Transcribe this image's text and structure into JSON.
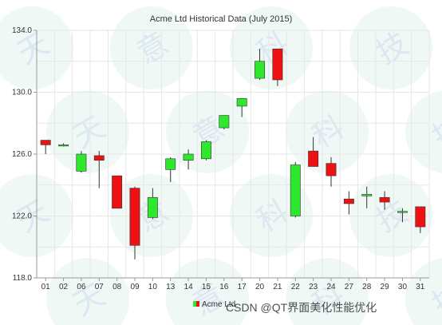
{
  "chart_data": {
    "type": "candlestick",
    "title": "Acme Ltd Historical Data (July 2015)",
    "ylim": [
      118.0,
      134.0
    ],
    "yticks": [
      "118.0",
      "122.0",
      "126.0",
      "130.0",
      "134.0"
    ],
    "legend": {
      "label": "Acme Ltd",
      "position": "bottom-center"
    },
    "grid": true,
    "colors": {
      "increasing": "#2ee82e",
      "decreasing": "#ee1111"
    },
    "series": [
      {
        "name": "Acme Ltd",
        "points": [
          {
            "x": "01",
            "open": 126.9,
            "high": 126.9,
            "low": 126.0,
            "close": 126.6
          },
          {
            "x": "02",
            "open": 126.6,
            "high": 126.7,
            "low": 126.5,
            "close": 126.6
          },
          {
            "x": "06",
            "open": 124.9,
            "high": 126.2,
            "low": 124.8,
            "close": 126.0
          },
          {
            "x": "07",
            "open": 125.9,
            "high": 126.2,
            "low": 123.8,
            "close": 125.6
          },
          {
            "x": "08",
            "open": 124.6,
            "high": 124.6,
            "low": 122.5,
            "close": 122.5
          },
          {
            "x": "09",
            "open": 123.8,
            "high": 123.9,
            "low": 119.2,
            "close": 120.1
          },
          {
            "x": "10",
            "open": 121.9,
            "high": 123.8,
            "low": 121.8,
            "close": 123.2
          },
          {
            "x": "13",
            "open": 125.0,
            "high": 125.8,
            "low": 124.2,
            "close": 125.7
          },
          {
            "x": "14",
            "open": 125.6,
            "high": 126.3,
            "low": 125.0,
            "close": 126.0
          },
          {
            "x": "15",
            "open": 125.7,
            "high": 126.9,
            "low": 125.6,
            "close": 126.8
          },
          {
            "x": "16",
            "open": 127.7,
            "high": 128.5,
            "low": 127.6,
            "close": 128.5
          },
          {
            "x": "17",
            "open": 129.1,
            "high": 129.6,
            "low": 128.4,
            "close": 129.6
          },
          {
            "x": "20",
            "open": 130.9,
            "high": 132.8,
            "low": 130.8,
            "close": 132.0
          },
          {
            "x": "21",
            "open": 132.8,
            "high": 132.8,
            "low": 130.4,
            "close": 130.8
          },
          {
            "x": "22",
            "open": 122.0,
            "high": 125.5,
            "low": 121.9,
            "close": 125.3
          },
          {
            "x": "23",
            "open": 126.2,
            "high": 127.1,
            "low": 125.2,
            "close": 125.2
          },
          {
            "x": "24",
            "open": 125.4,
            "high": 125.8,
            "low": 123.9,
            "close": 124.6
          },
          {
            "x": "27",
            "open": 123.1,
            "high": 123.6,
            "low": 122.1,
            "close": 122.8
          },
          {
            "x": "28",
            "open": 123.3,
            "high": 123.9,
            "low": 122.5,
            "close": 123.4
          },
          {
            "x": "29",
            "open": 123.2,
            "high": 123.6,
            "low": 122.4,
            "close": 122.9
          },
          {
            "x": "30",
            "open": 122.3,
            "high": 122.5,
            "low": 121.6,
            "close": 122.3
          },
          {
            "x": "31",
            "open": 122.6,
            "high": 122.6,
            "low": 120.9,
            "close": 121.3
          }
        ]
      }
    ]
  },
  "watermark": {
    "text": "CSDN @QT界面美化性能优化"
  }
}
